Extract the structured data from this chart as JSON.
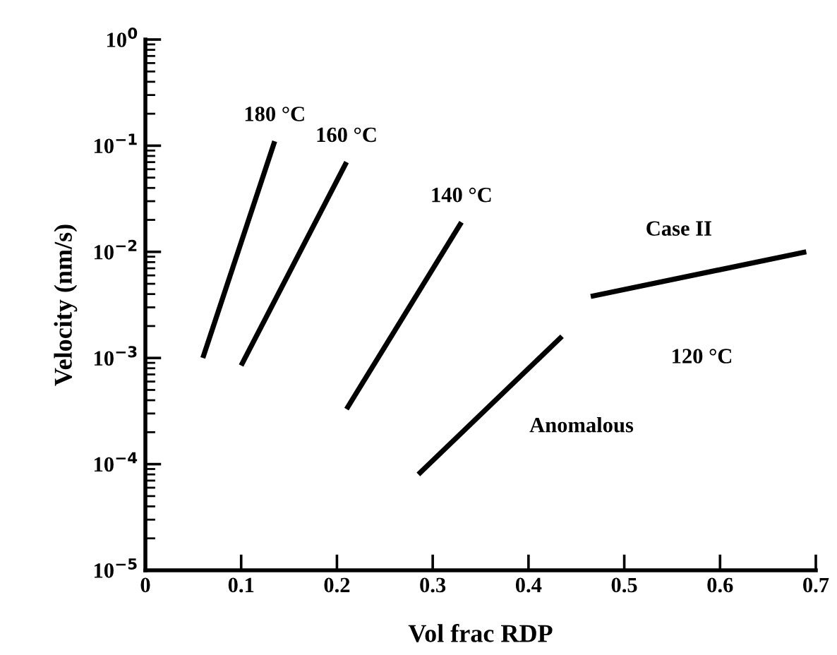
{
  "chart_data": {
    "type": "line",
    "xlabel": "Vol frac RDP",
    "ylabel": "Velocity (nm/s)",
    "log": "y",
    "xlim": [
      0,
      0.7
    ],
    "xticks": [
      0,
      0.1,
      0.2,
      0.3,
      0.4,
      0.5,
      0.6,
      0.7
    ],
    "ylim": [
      1e-05,
      1
    ],
    "yticks": [
      {
        "value": 1e-05,
        "label": "10$^{−5}$"
      },
      {
        "value": 0.0001,
        "label": "10$^{−4}$"
      },
      {
        "value": 0.001,
        "label": "10$^{−3}$"
      },
      {
        "value": 0.01,
        "label": "10$^{−2}$"
      },
      {
        "value": 0.1,
        "label": "10$^{−1}$"
      },
      {
        "value": 1,
        "label": "10$^{0}$"
      }
    ],
    "grid": false,
    "legend": false,
    "marker": "none",
    "line_style": "solid",
    "series": [
      {
        "name": "180 °C",
        "color": "#000000",
        "x": [
          0.06,
          0.135
        ],
        "values": [
          0.001,
          0.11
        ]
      },
      {
        "name": "160 °C",
        "color": "#000000",
        "x": [
          0.1,
          0.21
        ],
        "values": [
          0.00085,
          0.07
        ]
      },
      {
        "name": "140 °C",
        "color": "#000000",
        "x": [
          0.21,
          0.33
        ],
        "values": [
          0.00033,
          0.019
        ]
      },
      {
        "name": "Anomalous",
        "color": "#000000",
        "x": [
          0.285,
          0.435
        ],
        "values": [
          8e-05,
          0.0016
        ]
      },
      {
        "name": "Case II",
        "color": "#000000",
        "x": [
          0.465,
          0.69
        ],
        "values": [
          0.0038,
          0.01
        ]
      }
    ],
    "annotations": [
      "120 °C"
    ]
  }
}
